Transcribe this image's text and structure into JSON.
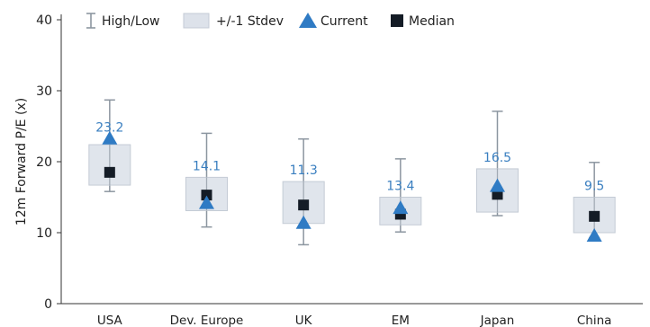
{
  "chart_data": {
    "type": "box",
    "ylabel": "12m Forward P/E (x)",
    "ylim": [
      0,
      40
    ],
    "yticks": [
      0,
      10,
      20,
      30,
      40
    ],
    "grid": false,
    "legend_position": "top",
    "legend": [
      {
        "key": "high_low",
        "label": "High/Low"
      },
      {
        "key": "stdev",
        "label": "+/-1 Stdev"
      },
      {
        "key": "current",
        "label": "Current"
      },
      {
        "key": "median",
        "label": "Median"
      }
    ],
    "categories": [
      "USA",
      "Dev. Europe",
      "UK",
      "EM",
      "Japan",
      "China"
    ],
    "series": [
      {
        "category": "USA",
        "low": 15.8,
        "high": 28.7,
        "stdev_low": 16.7,
        "stdev_high": 22.4,
        "current": 23.2,
        "median": 18.5,
        "current_label": "23.2"
      },
      {
        "category": "Dev. Europe",
        "low": 10.8,
        "high": 24.0,
        "stdev_low": 13.1,
        "stdev_high": 17.8,
        "current": 14.1,
        "median": 15.3,
        "current_label": "14.1"
      },
      {
        "category": "UK",
        "low": 8.3,
        "high": 23.2,
        "stdev_low": 11.3,
        "stdev_high": 17.2,
        "current": 11.3,
        "median": 13.9,
        "current_label": "11.3"
      },
      {
        "category": "EM",
        "low": 10.1,
        "high": 20.4,
        "stdev_low": 11.1,
        "stdev_high": 15.0,
        "current": 13.4,
        "median": 12.6,
        "current_label": "13.4"
      },
      {
        "category": "Japan",
        "low": 12.4,
        "high": 27.1,
        "stdev_low": 12.9,
        "stdev_high": 19.0,
        "current": 16.5,
        "median": 15.4,
        "current_label": "16.5"
      },
      {
        "category": "China",
        "low": 9.3,
        "high": 19.9,
        "stdev_low": 10.0,
        "stdev_high": 15.0,
        "current": 9.5,
        "median": 12.3,
        "current_label": "9.5"
      }
    ],
    "colors": {
      "whisker": "#8c96a0",
      "box_fill": "#dde2ea",
      "box_stroke": "#c4cbd5",
      "current": "#2f7bc4",
      "current_label": "#3a7fc0",
      "median": "#141c26",
      "axis": "#333333"
    }
  }
}
